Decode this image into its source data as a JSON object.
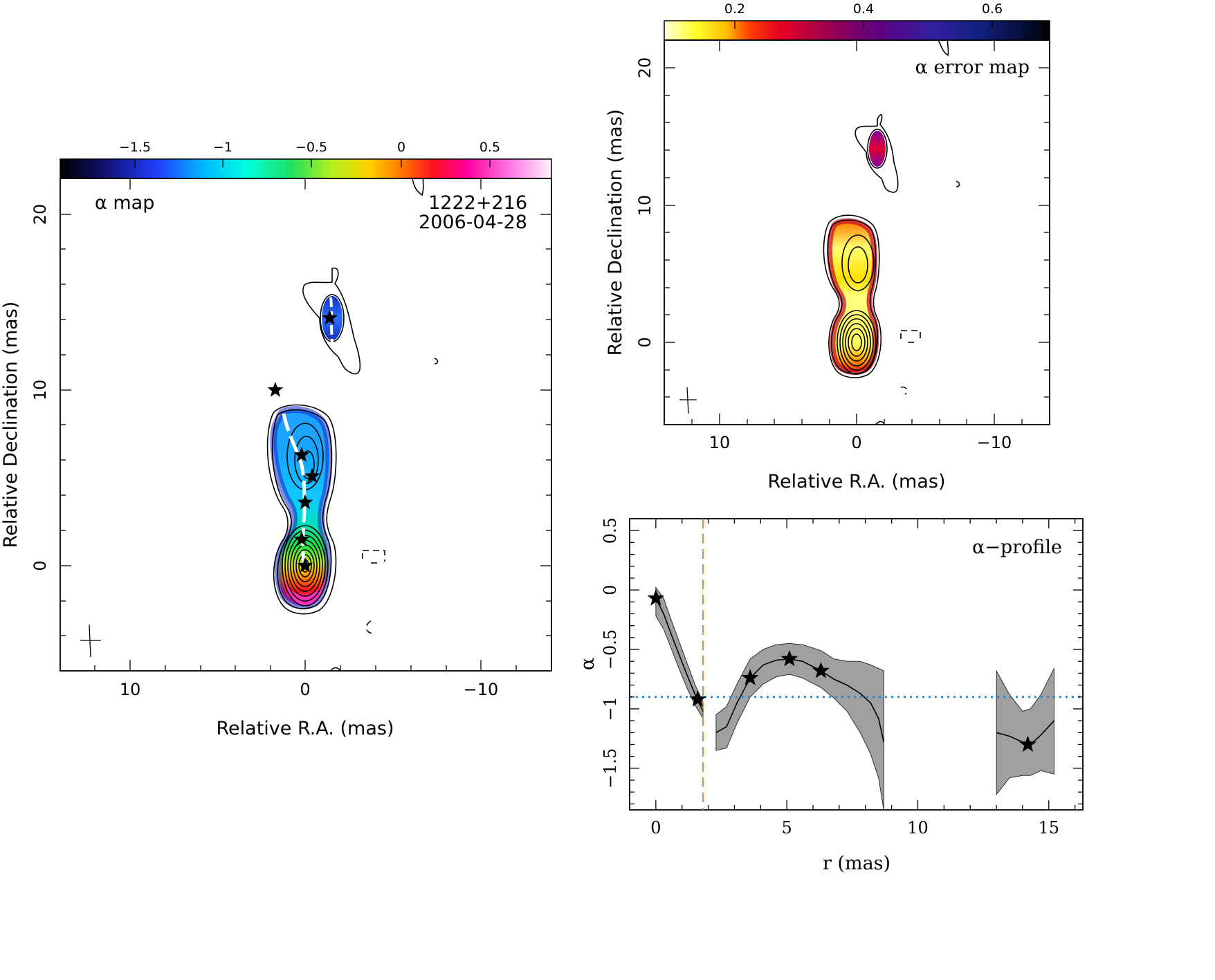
{
  "figure": {
    "colors": {
      "ridge": "#ffffff",
      "threshold_line": "#1e88e5",
      "cut_line": "#f28c28",
      "error_band": "#a0a0a0"
    },
    "panels": {
      "alpha_map": {
        "label": "α map",
        "source": "1222+216",
        "date": "2006-04-28",
        "xlabel": "Relative R.A. (mas)",
        "ylabel": "Relative Declination (mas)",
        "xlim": [
          14,
          -14
        ],
        "ylim": [
          -6,
          22
        ],
        "x_ticks": [
          "10",
          "0",
          "−10"
        ],
        "y_ticks": [
          "0",
          "10",
          "20"
        ],
        "colorbar": {
          "range": [
            -1.95,
            0.85
          ],
          "ticks": [
            "−1.5",
            "−1",
            "−0.5",
            "0",
            "0.5"
          ],
          "tick_values": [
            -1.5,
            -1,
            -0.5,
            0,
            0.5
          ]
        },
        "stars": [
          [
            0,
            0
          ],
          [
            0.2,
            1.5
          ],
          [
            0,
            3.6
          ],
          [
            -0.4,
            5.1
          ],
          [
            0.2,
            6.3
          ],
          [
            1.7,
            10
          ],
          [
            -1.4,
            14.1
          ]
        ]
      },
      "error_map": {
        "label": "α error map",
        "xlabel": "Relative R.A. (mas)",
        "ylabel": "Relative Declination (mas)",
        "xlim": [
          14,
          -14
        ],
        "ylim": [
          -6,
          22
        ],
        "x_ticks": [
          "10",
          "0",
          "−10"
        ],
        "y_ticks": [
          "0",
          "10",
          "20"
        ],
        "colorbar": {
          "range": [
            0.05,
            0.7
          ],
          "ticks": [
            "0.2",
            "0.4",
            "0.6"
          ],
          "tick_values": [
            0.2,
            0.4,
            0.6
          ]
        }
      }
    }
  },
  "chart_data": [
    {
      "type": "line",
      "panel": "α-profile",
      "title": "α−profile",
      "xlabel": "r (mas)",
      "ylabel": "α",
      "xlim": [
        -1,
        16.3
      ],
      "ylim": [
        -1.85,
        0.6
      ],
      "x_ticks": [
        0,
        5,
        10,
        15
      ],
      "y_ticks": [
        0.5,
        0,
        -0.5,
        -1,
        -1.5
      ],
      "y_tick_labels": [
        "0.5",
        "0",
        "−0.5",
        "−1",
        "−1.5"
      ],
      "reference_lines": {
        "horizontal_alpha": -0.9,
        "vertical_r": 1.8
      },
      "series": [
        {
          "segment": 1,
          "x": [
            0,
            0.3,
            0.6,
            0.9,
            1.2,
            1.5,
            1.8
          ],
          "y": [
            -0.07,
            -0.2,
            -0.38,
            -0.55,
            -0.72,
            -0.88,
            -1.02
          ],
          "lo": [
            -0.22,
            -0.33,
            -0.5,
            -0.67,
            -0.83,
            -0.97,
            -1.08
          ],
          "hi": [
            0.02,
            -0.07,
            -0.26,
            -0.44,
            -0.62,
            -0.8,
            -0.94
          ]
        },
        {
          "segment": 2,
          "x": [
            2.3,
            2.7,
            3.1,
            3.6,
            4.1,
            4.6,
            5.1,
            5.6,
            6.3,
            6.8,
            7.3,
            7.8,
            8.2,
            8.5,
            8.7
          ],
          "y": [
            -1.2,
            -1.15,
            -0.95,
            -0.74,
            -0.63,
            -0.59,
            -0.58,
            -0.6,
            -0.68,
            -0.75,
            -0.8,
            -0.87,
            -0.95,
            -1.08,
            -1.28
          ],
          "lo": [
            -1.35,
            -1.33,
            -1.12,
            -0.9,
            -0.79,
            -0.73,
            -0.71,
            -0.74,
            -0.82,
            -0.91,
            -1.02,
            -1.2,
            -1.38,
            -1.58,
            -1.85
          ],
          "hi": [
            -1.05,
            -0.98,
            -0.79,
            -0.58,
            -0.5,
            -0.46,
            -0.45,
            -0.46,
            -0.51,
            -0.58,
            -0.6,
            -0.6,
            -0.63,
            -0.66,
            -0.68
          ]
        },
        {
          "segment": 3,
          "x": [
            13,
            13.5,
            14,
            14.3,
            14.7,
            15.2
          ],
          "y": [
            -1.2,
            -1.23,
            -1.28,
            -1.3,
            -1.22,
            -1.1
          ],
          "lo": [
            -1.72,
            -1.58,
            -1.56,
            -1.56,
            -1.52,
            -1.55
          ],
          "hi": [
            -0.68,
            -0.88,
            -1.02,
            -1.0,
            -0.88,
            -0.66
          ]
        }
      ],
      "stars": [
        [
          0,
          -0.07
        ],
        [
          1.6,
          -0.92
        ],
        [
          3.6,
          -0.74
        ],
        [
          5.1,
          -0.58
        ],
        [
          6.3,
          -0.68
        ],
        [
          14.2,
          -1.3
        ]
      ]
    }
  ]
}
